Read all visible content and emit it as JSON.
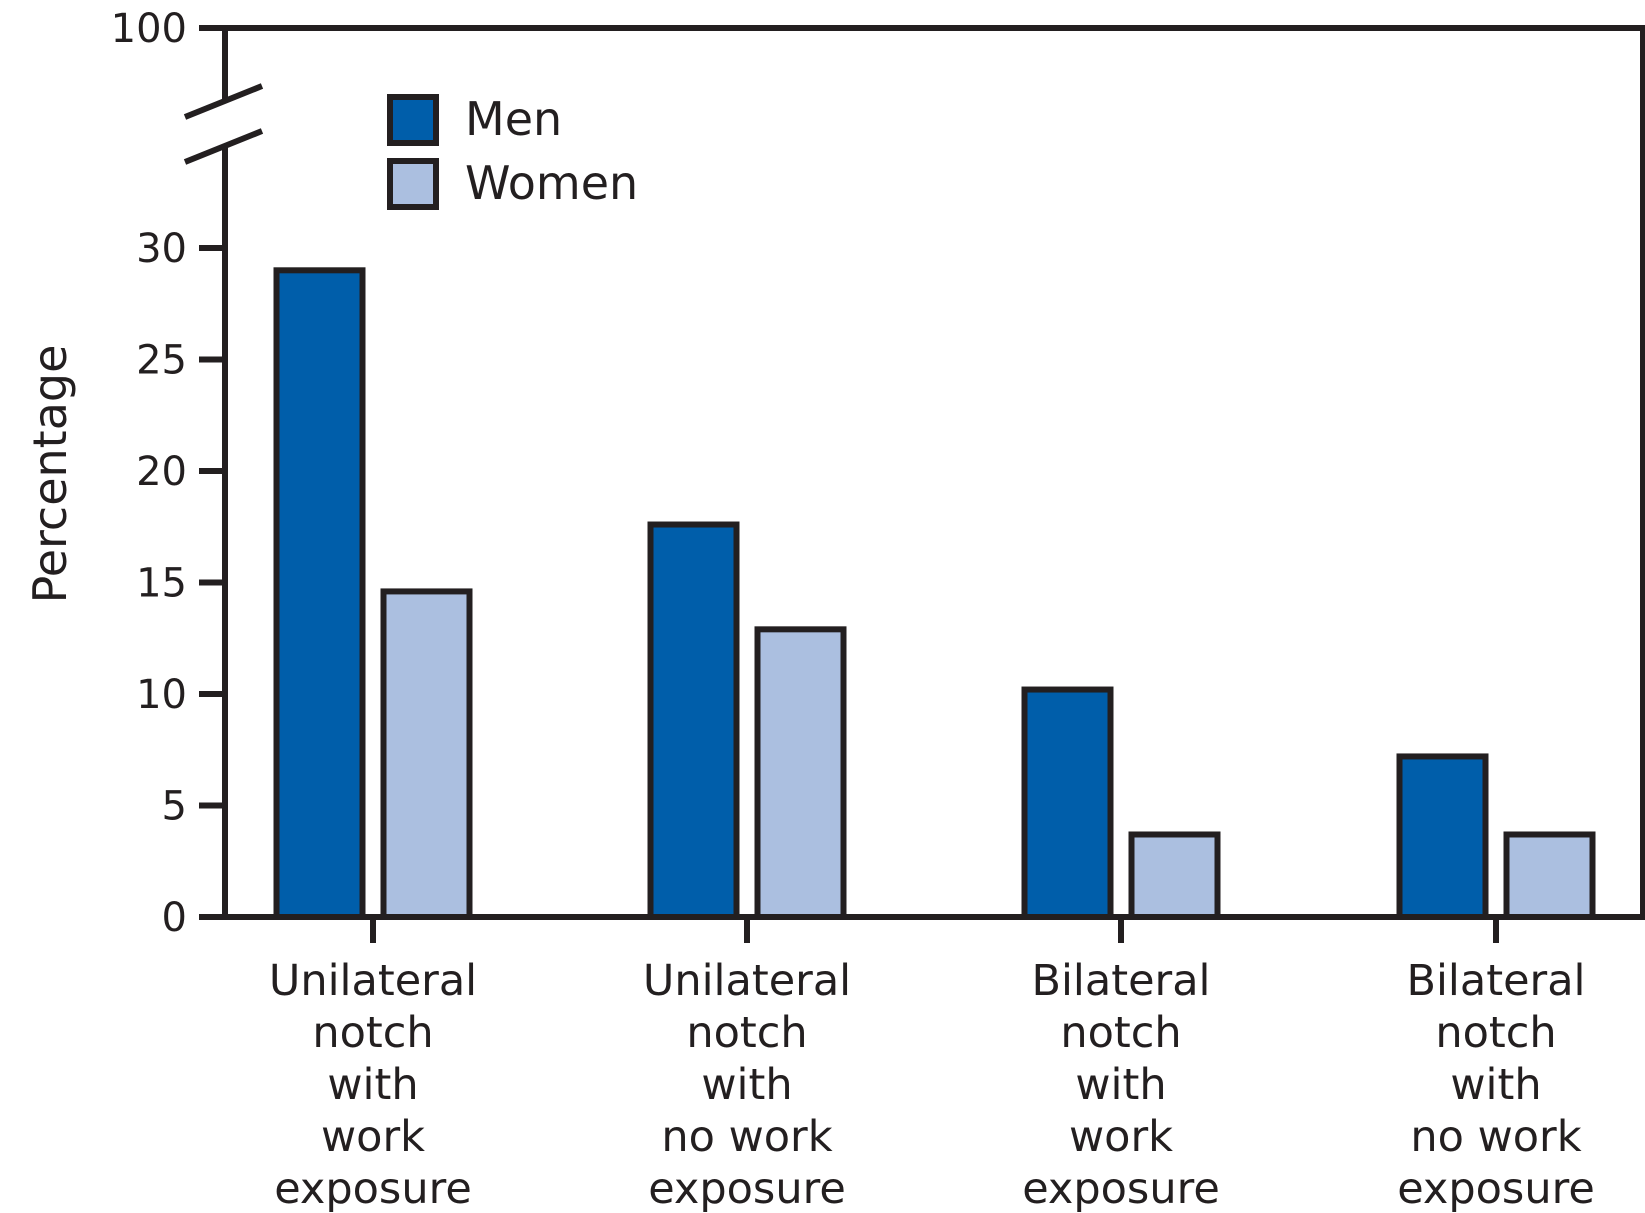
{
  "chart_data": {
    "type": "bar",
    "ylabel": "Percentage",
    "xlabel": "",
    "ylim": [
      0,
      100
    ],
    "axis_break": {
      "from": 30,
      "to": 100
    },
    "y_ticks": [
      "0",
      "5",
      "10",
      "15",
      "20",
      "25",
      "30",
      "100"
    ],
    "categories": [
      [
        "Unilateral",
        "notch",
        "with",
        "work",
        "exposure"
      ],
      [
        "Unilateral",
        "notch",
        "with",
        "no work",
        "exposure"
      ],
      [
        "Bilateral",
        "notch",
        "with",
        "work",
        "exposure"
      ],
      [
        "Bilateral",
        "notch",
        "with",
        "no work",
        "exposure"
      ]
    ],
    "series": [
      {
        "name": "Men",
        "color": "#005eaa",
        "values": [
          29.0,
          17.6,
          10.2,
          7.2
        ]
      },
      {
        "name": "Women",
        "color": "#abbfe0",
        "values": [
          14.6,
          12.9,
          3.7,
          3.7
        ]
      }
    ],
    "legend_position": "top-left",
    "grid": false
  }
}
